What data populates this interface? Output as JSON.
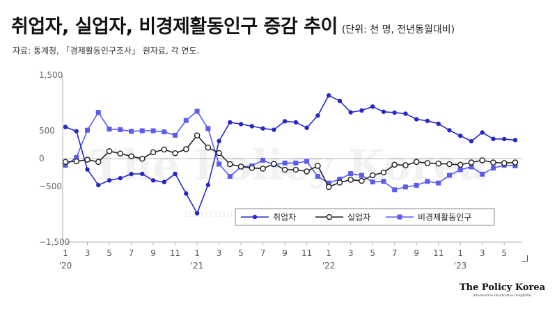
{
  "header": {
    "title": "취업자, 실업자, 비경제활동인구 증감 추이",
    "unit": "(단위: 천 명, 전년동월대비)",
    "source": "자료: 통계청, 「경제활동인구조사」 원자료, 각 연도."
  },
  "brand": {
    "watermark": "The Policy Korea",
    "watermark_tagline": "informative·illustrative·insightful",
    "logo_name": "The Policy Korea",
    "logo_tagline": "informative·illustrative·insightful"
  },
  "colors": {
    "employed": "#2727c9",
    "unemployed": "#222222",
    "inactive": "#5b5bf0",
    "grid": "#c8c8c8",
    "axis": "#b0b0b0"
  },
  "chart_data": {
    "type": "line",
    "ylim": [
      -1500,
      1500
    ],
    "yticks": [
      {
        "value": 1500,
        "label": "1,500"
      },
      {
        "value": 500,
        "label": "500"
      },
      {
        "value": 0,
        "label": "0"
      },
      {
        "value": -500,
        "label": "−500"
      },
      {
        "value": -1500,
        "label": "−1,500"
      }
    ],
    "x": [
      "2020-01",
      "2020-02",
      "2020-03",
      "2020-04",
      "2020-05",
      "2020-06",
      "2020-07",
      "2020-08",
      "2020-09",
      "2020-10",
      "2020-11",
      "2020-12",
      "2021-01",
      "2021-02",
      "2021-03",
      "2021-04",
      "2021-05",
      "2021-06",
      "2021-07",
      "2021-08",
      "2021-09",
      "2021-10",
      "2021-11",
      "2021-12",
      "2022-01",
      "2022-02",
      "2022-03",
      "2022-04",
      "2022-05",
      "2022-06",
      "2022-07",
      "2022-08",
      "2022-09",
      "2022-10",
      "2022-11",
      "2022-12",
      "2023-01",
      "2023-02",
      "2023-03",
      "2023-04",
      "2023-05",
      "2023-06"
    ],
    "xtick_labels": [
      {
        "index": 0,
        "label": "1"
      },
      {
        "index": 2,
        "label": "3"
      },
      {
        "index": 4,
        "label": "5"
      },
      {
        "index": 6,
        "label": "7"
      },
      {
        "index": 8,
        "label": "9"
      },
      {
        "index": 10,
        "label": "11"
      },
      {
        "index": 12,
        "label": "1"
      },
      {
        "index": 14,
        "label": "3"
      },
      {
        "index": 16,
        "label": "5"
      },
      {
        "index": 18,
        "label": "7"
      },
      {
        "index": 20,
        "label": "9"
      },
      {
        "index": 22,
        "label": "11"
      },
      {
        "index": 24,
        "label": "1"
      },
      {
        "index": 26,
        "label": "3"
      },
      {
        "index": 28,
        "label": "5"
      },
      {
        "index": 30,
        "label": "7"
      },
      {
        "index": 32,
        "label": "9"
      },
      {
        "index": 34,
        "label": "11"
      },
      {
        "index": 36,
        "label": "1"
      },
      {
        "index": 38,
        "label": "3"
      },
      {
        "index": 40,
        "label": "5"
      }
    ],
    "year_labels": [
      {
        "index": 0,
        "label": "'20"
      },
      {
        "index": 12,
        "label": "'21"
      },
      {
        "index": 24,
        "label": "'22"
      },
      {
        "index": 36,
        "label": "'23"
      }
    ],
    "series": [
      {
        "name": "취업자",
        "marker": "filled-circle",
        "values": [
          568,
          492,
          -195,
          -476,
          -392,
          -352,
          -277,
          -274,
          -392,
          -421,
          -273,
          -628,
          -982,
          -473,
          314,
          652,
          619,
          582,
          542,
          518,
          671,
          652,
          553,
          773,
          1135,
          1037,
          831,
          865,
          935,
          841,
          826,
          807,
          707,
          677,
          626,
          509,
          411,
          312,
          469,
          354,
          351,
          333
        ]
      },
      {
        "name": "실업자",
        "marker": "open-circle",
        "values": [
          -60,
          -50,
          -20,
          -60,
          133,
          90,
          41,
          -1,
          113,
          163,
          97,
          168,
          417,
          199,
          100,
          -100,
          -143,
          -168,
          -180,
          -95,
          -200,
          -200,
          -230,
          -130,
          -510,
          -430,
          -380,
          -400,
          -300,
          -250,
          -110,
          -120,
          -60,
          -80,
          -90,
          -100,
          -110,
          -70,
          -30,
          -70,
          -80,
          -70
        ]
      },
      {
        "name": "비경제활동인구",
        "marker": "filled-square",
        "values": [
          -120,
          20,
          510,
          830,
          530,
          520,
          490,
          500,
          500,
          480,
          420,
          685,
          850,
          540,
          -100,
          -320,
          -150,
          -130,
          -30,
          -110,
          -80,
          -80,
          -50,
          -320,
          -440,
          -370,
          -270,
          -300,
          -420,
          -410,
          -560,
          -510,
          -480,
          -410,
          -440,
          -300,
          -200,
          -150,
          -280,
          -170,
          -120,
          -130
        ]
      }
    ]
  }
}
